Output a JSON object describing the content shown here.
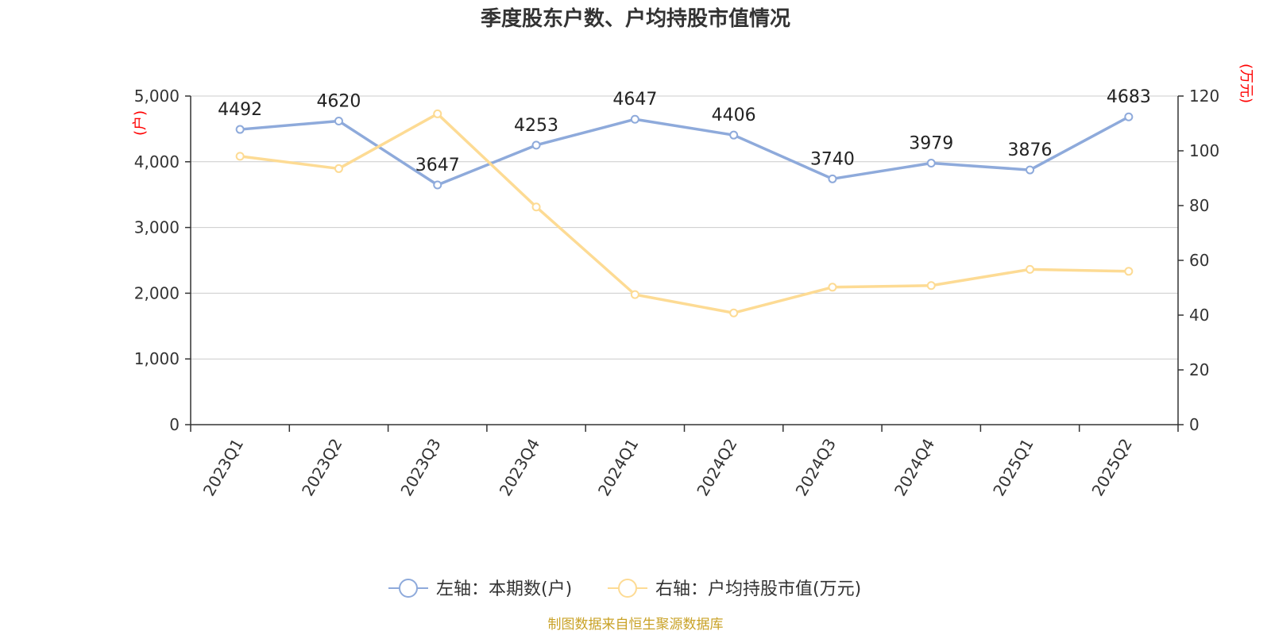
{
  "title": "季度股东户数、户均持股市值情况",
  "source": "制图数据来自恒生聚源数据库",
  "chart_data": {
    "type": "line",
    "title": "季度股东户数、户均持股市值情况",
    "categories": [
      "2023Q1",
      "2023Q2",
      "2023Q3",
      "2023Q4",
      "2024Q1",
      "2024Q2",
      "2024Q3",
      "2024Q4",
      "2025Q1",
      "2025Q2"
    ],
    "y_left": {
      "unit": "(户)",
      "ylim": [
        0,
        5000
      ],
      "ticks": [
        0,
        1000,
        2000,
        3000,
        4000,
        5000
      ],
      "tick_labels": [
        "0",
        "1,000",
        "2,000",
        "3,000",
        "4,000",
        "5,000"
      ]
    },
    "y_right": {
      "unit": "(万元)",
      "ylim": [
        0,
        120
      ],
      "ticks": [
        0,
        20,
        40,
        60,
        80,
        100,
        120
      ],
      "tick_labels": [
        "0",
        "20",
        "40",
        "60",
        "80",
        "100",
        "120"
      ]
    },
    "grid": true,
    "legend_position": "bottom",
    "series": [
      {
        "name": "左轴：本期数(户)",
        "axis": "left",
        "color": "#8eaadb",
        "values": [
          4492,
          4620,
          3647,
          4253,
          4647,
          4406,
          3740,
          3979,
          3876,
          4683
        ],
        "data_labels": [
          "4492",
          "4620",
          "3647",
          "4253",
          "4647",
          "4406",
          "3740",
          "3979",
          "3876",
          "4683"
        ]
      },
      {
        "name": "右轴：户均持股市值(万元)",
        "axis": "right",
        "color": "#fddb94",
        "values": [
          98.0,
          93.5,
          113.5,
          79.5,
          47.5,
          40.8,
          50.2,
          50.8,
          56.7,
          56.0
        ]
      }
    ]
  }
}
